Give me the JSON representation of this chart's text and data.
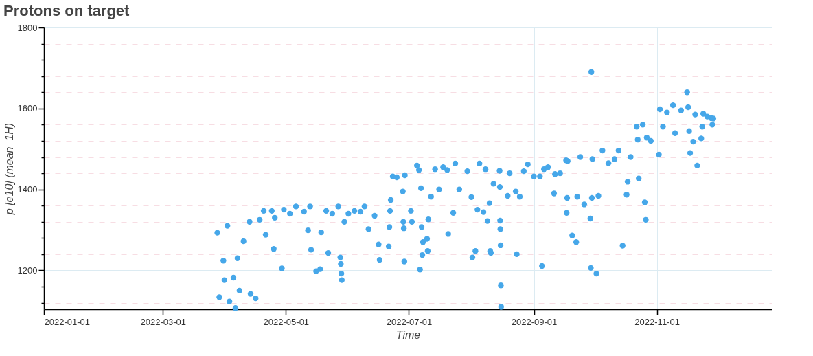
{
  "chart_data": {
    "type": "scatter",
    "title": "Protons on target",
    "xlabel": "Time",
    "ylabel": "p [e10] (mean_1H)",
    "x": [
      "2022-03-28",
      "2022-03-29",
      "2022-03-31",
      "2022-03-31T12:00",
      "2022-04-02",
      "2022-04-03",
      "2022-04-05",
      "2022-04-06",
      "2022-04-07",
      "2022-04-08",
      "2022-04-10",
      "2022-04-13",
      "2022-04-13T12:00",
      "2022-04-16",
      "2022-04-20",
      "2022-04-21",
      "2022-04-25",
      "2022-04-24",
      "2022-04-29",
      "2022-04-30",
      "2022-05-06",
      "2022-05-13",
      "2022-05-12",
      "2022-05-13T12:00",
      "2022-05-16",
      "2022-05-18",
      "2022-05-18T12:00",
      "2022-05-22",
      "2022-05-21",
      "2022-05-27",
      "2022-05-28",
      "2022-05-28T06:00",
      "2022-05-28T12:00",
      "2022-05-28T18:00",
      "2022-05-30",
      "2022-06-04",
      "2022-06-09",
      "2022-06-11",
      "2022-06-16",
      "2022-06-16T12:00",
      "2022-06-21",
      "2022-06-21T08:00",
      "2022-06-21T16:00",
      "2022-06-22",
      "2022-06-23",
      "2022-06-29",
      "2022-06-28",
      "2022-06-28T06:00",
      "2022-06-28T12:00",
      "2022-06-28T18:00",
      "2022-07-05",
      "2022-07-02",
      "2022-07-02T12:00",
      "2022-07-06",
      "2022-07-07",
      "2022-07-07T08:00",
      "2022-07-08",
      "2022-07-10",
      "2022-07-10T08:00",
      "2022-07-10T16:00",
      "2022-07-07T16:00",
      "2022-07-06T12:00",
      "2022-07-12",
      "2022-07-16",
      "2022-07-20",
      "2022-07-20T12:00",
      "2022-07-23",
      "2022-07-24",
      "2022-07-26",
      "2022-08-01",
      "2022-08-03",
      "2022-08-01T12:00",
      "2022-08-04",
      "2022-08-07",
      "2022-08-09",
      "2022-08-10",
      "2022-08-10T08:00",
      "2022-08-10T16:00",
      "2022-08-05",
      "2022-08-12",
      "2022-08-15",
      "2022-08-15T03:00",
      "2022-08-15T06:00",
      "2022-08-15T09:00",
      "2022-08-15T12:00",
      "2022-08-15T15:00",
      "2022-08-15T18:00",
      "2022-08-19",
      "2022-08-23",
      "2022-08-23T12:00",
      "2022-08-25",
      "2022-08-29",
      "2022-09-01",
      "2022-09-05",
      "2022-09-04",
      "2022-09-11",
      "2022-09-11T12:00",
      "2022-09-17",
      "2022-09-17T06:00",
      "2022-09-17T12:00",
      "2022-09-20",
      "2022-09-22",
      "2022-09-22T12:00",
      "2022-09-26",
      "2022-09-29",
      "2022-09-29T06:00",
      "2022-09-29T12:00",
      "2022-10-02",
      "2022-09-29T18:00",
      "2022-09-30",
      "2022-10-03",
      "2022-10-15",
      "2022-10-17",
      "2022-10-17T12:00",
      "2022-10-23",
      "2022-10-26",
      "2022-10-26T12:00",
      "2022-10-22",
      "2022-10-25",
      "2022-10-22T12:00",
      "2022-10-27",
      "2022-10-13",
      "2022-10-05",
      "2022-09-24",
      "2022-09-17T18:00",
      "2022-11-02",
      "2022-11-02T12:00",
      "2022-11-09",
      "2022-11-16",
      "2022-11-16T12:00",
      "2022-11-10",
      "2022-11-17",
      "2022-11-17T12:00",
      "2022-11-19",
      "2022-11-21",
      "2022-11-23",
      "2022-11-23T12:00",
      "2022-11-28",
      "2022-11-28T12:00",
      "2022-11-24",
      "2022-11-04",
      "2022-04-25T12:00",
      "2022-05-03",
      "2022-05-10",
      "2022-06-01",
      "2022-06-14",
      "2022-07-14",
      "2022-07-30",
      "2022-08-20",
      "2022-09-06",
      "2022-09-14",
      "2022-10-08",
      "2022-10-11",
      "2022-10-19",
      "2022-11-06",
      "2022-11-13",
      "2022-11-26",
      "2022-11-29",
      "2022-04-18",
      "2022-05-24",
      "2022-06-07",
      "2022-06-25",
      "2022-07-18",
      "2022-08-08",
      "2022-08-27",
      "2022-09-08",
      "2022-10-29",
      "2022-11-20"
    ],
    "series": [
      {
        "color": "#46a7e9",
        "values": [
          1293,
          1134,
          1224,
          1176,
          1310,
          1123,
          1182,
          1107,
          1230,
          1150,
          1272,
          1320,
          1142,
          1131,
          1347,
          1288,
          1253,
          1347,
          1205,
          1350,
          1358,
          1358,
          1299,
          1251,
          1198,
          1203,
          1294,
          1243,
          1347,
          1358,
          1232,
          1216,
          1192,
          1176,
          1320,
          1347,
          1358,
          1302,
          1264,
          1226,
          1259,
          1307,
          1347,
          1374,
          1432,
          1435,
          1395,
          1320,
          1304,
          1222,
          1459,
          1347,
          1320,
          1448,
          1403,
          1307,
          1270,
          1278,
          1248,
          1326,
          1238,
          1202,
          1382,
          1400,
          1448,
          1290,
          1342,
          1464,
          1400,
          1381,
          1248,
          1232,
          1350,
          1344,
          1322,
          1366,
          1248,
          1243,
          1464,
          1414,
          1446,
          1406,
          1323,
          1302,
          1262,
          1163,
          1110,
          1384,
          1395,
          1240,
          1382,
          1462,
          1432,
          1211,
          1432,
          1390,
          1438,
          1472,
          1342,
          1379,
          1286,
          1270,
          1382,
          1363,
          1328,
          1206,
          1690,
          1192,
          1379,
          1475,
          1384,
          1261,
          1387,
          1419,
          1427,
          1368,
          1325,
          1555,
          1560,
          1523,
          1528,
          1496,
          1496,
          1480,
          1470,
          1486,
          1598,
          1608,
          1640,
          1603,
          1539,
          1544,
          1490,
          1518,
          1459,
          1526,
          1555,
          1576,
          1560,
          1587,
          1555,
          1330,
          1340,
          1345,
          1340,
          1335,
          1450,
          1445,
          1440,
          1450,
          1440,
          1465,
          1475,
          1480,
          1590,
          1595,
          1580,
          1575,
          1325,
          1340,
          1345,
          1430,
          1455,
          1450,
          1445,
          1455,
          1520,
          1585
        ]
      }
    ],
    "xlim": [
      "2022-01-01",
      "2022-12-28"
    ],
    "xticks": [
      "2022-01-01",
      "2022-03-01",
      "2022-05-01",
      "2022-07-01",
      "2022-09-01",
      "2022-11-01"
    ],
    "ylim": [
      1104,
      1800
    ],
    "yticks": [
      {
        "value": 1120,
        "label": null
      },
      {
        "value": 1160,
        "label": null
      },
      {
        "value": 1200,
        "label": "1200"
      },
      {
        "value": 1240,
        "label": null
      },
      {
        "value": 1280,
        "label": null
      },
      {
        "value": 1320,
        "label": null
      },
      {
        "value": 1360,
        "label": null
      },
      {
        "value": 1400,
        "label": "1400"
      },
      {
        "value": 1440,
        "label": null
      },
      {
        "value": 1480,
        "label": null
      },
      {
        "value": 1520,
        "label": null
      },
      {
        "value": 1560,
        "label": null
      },
      {
        "value": 1600,
        "label": "1600"
      },
      {
        "value": 1640,
        "label": null
      },
      {
        "value": 1680,
        "label": null
      },
      {
        "value": 1720,
        "label": null
      },
      {
        "value": 1760,
        "label": null
      },
      {
        "value": 1800,
        "label": "1800"
      }
    ],
    "grid": true,
    "marker": "circle"
  }
}
